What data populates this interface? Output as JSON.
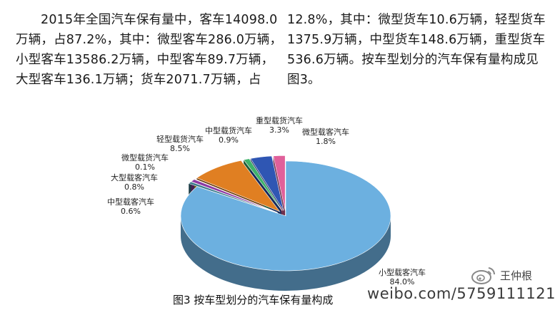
{
  "article": {
    "left_lines": [
      "2015年全国汽车保有量中，客车14098.0",
      "万辆，占87.2%，其中：微型客车286.0万辆，",
      "小型客车13586.2万辆，中型客车89.7万辆，",
      "大型客车136.1万辆；货车2071.7万辆，占"
    ],
    "right_lines": [
      "12.8%，其中：微型货车10.6万辆，轻型货车",
      "1375.9万辆，中型货车148.6万辆，重型货车",
      "536.6万辆。按车型划分的汽车保有量构成见",
      "图3。"
    ]
  },
  "chart_data": {
    "type": "pie",
    "title": "图3  按车型划分的汽车保有量构成",
    "slices": [
      {
        "name": "小型载客汽车",
        "value": 84.0,
        "label": "84.0%",
        "color": "#6cb0e0"
      },
      {
        "name": "中型载客汽车",
        "value": 0.6,
        "label": "0.6%",
        "color": "#3a7a8c"
      },
      {
        "name": "大型载客汽车",
        "value": 0.8,
        "label": "0.8%",
        "color": "#8d3aa3"
      },
      {
        "name": "微型载货汽车",
        "value": 0.1,
        "label": "0.1%",
        "color": "#c9c22c"
      },
      {
        "name": "轻型载货汽车",
        "value": 8.5,
        "label": "8.5%",
        "color": "#e07f22"
      },
      {
        "name": "中型载货汽车",
        "value": 0.9,
        "label": "0.9%",
        "color": "#3fb26a"
      },
      {
        "name": "重型载货汽车",
        "value": 3.3,
        "label": "3.3%",
        "color": "#2f56b3"
      },
      {
        "name": "微型载客汽车",
        "value": 1.8,
        "label": "1.8%",
        "color": "#e0609a"
      }
    ]
  },
  "watermark": {
    "user": "王仲根",
    "url": "weibo.com/5759111121"
  }
}
